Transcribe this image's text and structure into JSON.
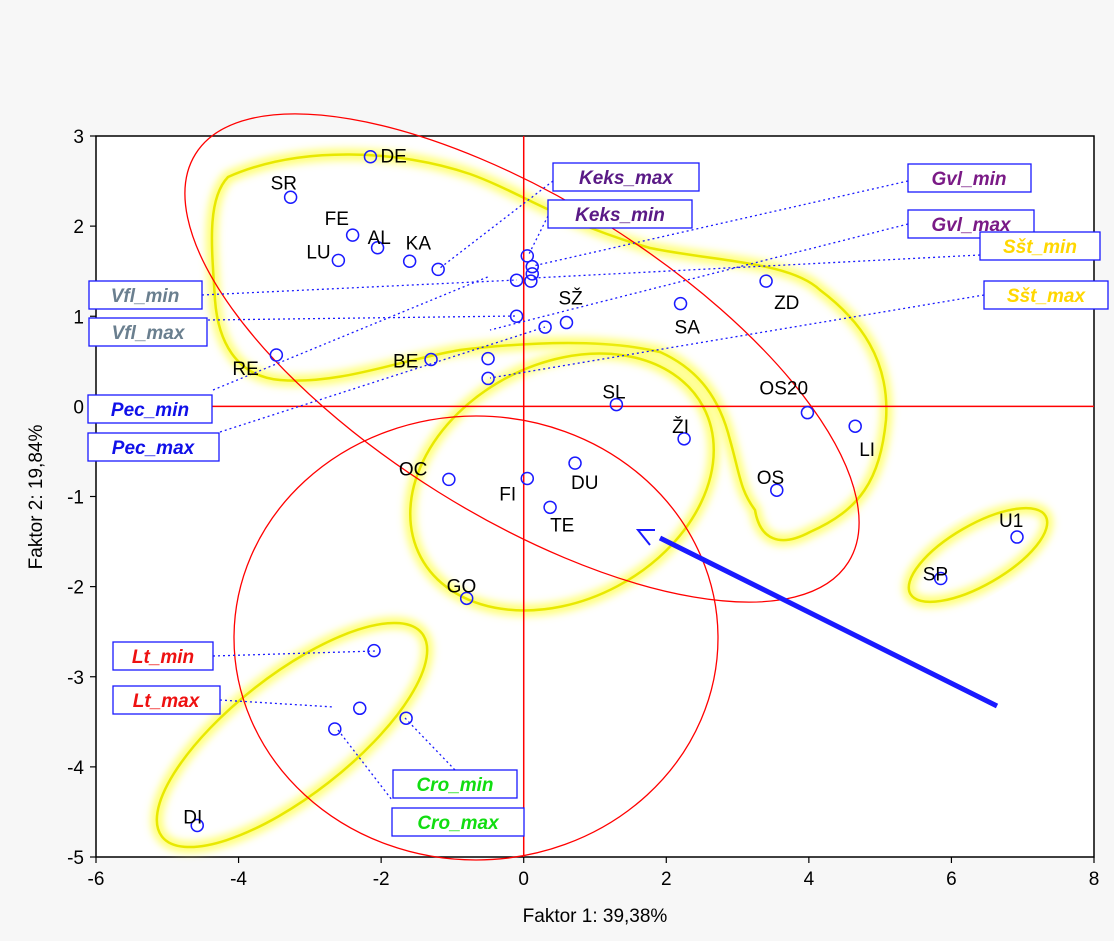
{
  "chart_data": {
    "type": "scatter",
    "title": "",
    "xlabel": "Faktor 1: 39,38%",
    "ylabel": "Faktor 2: 19,84%",
    "xlim": [
      -6,
      8
    ],
    "ylim": [
      -5,
      3
    ],
    "xticks": [
      "-6",
      "-4",
      "-2",
      "0",
      "2",
      "4",
      "6",
      "8"
    ],
    "yticks": [
      "3",
      "2",
      "1",
      "0",
      "-1",
      "-2",
      "-3",
      "-4",
      "-5"
    ],
    "grid": false,
    "reference_lines": {
      "x": 0,
      "y": 0,
      "color": "#ff0000"
    },
    "points": [
      {
        "label": "DE",
        "x": -2.15,
        "y": 2.77
      },
      {
        "label": "SR",
        "x": -3.27,
        "y": 2.32
      },
      {
        "label": "FE",
        "x": -2.4,
        "y": 1.9
      },
      {
        "label": "AL",
        "x": -2.05,
        "y": 1.76
      },
      {
        "label": "LU",
        "x": -2.6,
        "y": 1.62
      },
      {
        "label": "KA",
        "x": -1.6,
        "y": 1.61
      },
      {
        "label": "",
        "x": -1.2,
        "y": 1.52
      },
      {
        "label": "",
        "x": 0.05,
        "y": 1.67
      },
      {
        "label": "",
        "x": 0.12,
        "y": 1.55
      },
      {
        "label": "",
        "x": 0.12,
        "y": 1.47
      },
      {
        "label": "",
        "x": -0.1,
        "y": 1.4
      },
      {
        "label": "",
        "x": 0.1,
        "y": 1.39
      },
      {
        "label": "ZD",
        "x": 3.4,
        "y": 1.39
      },
      {
        "label": "SA",
        "x": 2.2,
        "y": 1.14
      },
      {
        "label": "",
        "x": -0.1,
        "y": 1.0
      },
      {
        "label": "SŽ",
        "x": 0.6,
        "y": 0.93
      },
      {
        "label": "",
        "x": 0.3,
        "y": 0.88
      },
      {
        "label": "RE",
        "x": -3.47,
        "y": 0.57
      },
      {
        "label": "BE",
        "x": -1.3,
        "y": 0.52
      },
      {
        "label": "",
        "x": -0.5,
        "y": 0.53
      },
      {
        "label": "",
        "x": -0.5,
        "y": 0.31
      },
      {
        "label": "SL",
        "x": 1.3,
        "y": 0.02
      },
      {
        "label": "OS20",
        "x": 3.98,
        "y": -0.07
      },
      {
        "label": "LI",
        "x": 4.65,
        "y": -0.22
      },
      {
        "label": "ŽI",
        "x": 2.25,
        "y": -0.36
      },
      {
        "label": "DU",
        "x": 0.72,
        "y": -0.63
      },
      {
        "label": "OC",
        "x": -1.05,
        "y": -0.81
      },
      {
        "label": "FI",
        "x": 0.05,
        "y": -0.8
      },
      {
        "label": "OS",
        "x": 3.55,
        "y": -0.93
      },
      {
        "label": "TE",
        "x": 0.37,
        "y": -1.12
      },
      {
        "label": "U1",
        "x": 6.92,
        "y": -1.45
      },
      {
        "label": "SP",
        "x": 5.85,
        "y": -1.91
      },
      {
        "label": "GO",
        "x": -0.8,
        "y": -2.13
      },
      {
        "label": "",
        "x": -2.1,
        "y": -2.71
      },
      {
        "label": "",
        "x": -2.3,
        "y": -3.35
      },
      {
        "label": "",
        "x": -1.65,
        "y": -3.46
      },
      {
        "label": "",
        "x": -2.65,
        "y": -3.58
      },
      {
        "label": "DI",
        "x": -4.58,
        "y": -4.65
      }
    ],
    "annotations": [
      {
        "label": "Keks_max",
        "color": "#5a1a86"
      },
      {
        "label": "Keks_min",
        "color": "#5a1a86"
      },
      {
        "label": "Gvl_min",
        "color": "#7a1a86"
      },
      {
        "label": "Gvl_max",
        "color": "#7a1a86"
      },
      {
        "label": "Sšt_min",
        "color": "#ffd700"
      },
      {
        "label": "Sšt_max",
        "color": "#ffd700"
      },
      {
        "label": "Vfl_min",
        "color": "#6a7f8f"
      },
      {
        "label": "Vfl_max",
        "color": "#6a7f8f"
      },
      {
        "label": "Pec_min",
        "color": "#1010e8"
      },
      {
        "label": "Pec_max",
        "color": "#1010e8"
      },
      {
        "label": "Lt_min",
        "color": "#ee1111"
      },
      {
        "label": "Lt_max",
        "color": "#ee1111"
      },
      {
        "label": "Cro_min",
        "color": "#11dd11"
      },
      {
        "label": "Cro_max",
        "color": "#11dd11"
      }
    ],
    "colors": {
      "point": "#1a1aff",
      "axis_lines": "#ff0000",
      "ellipse": "#ff0000",
      "highlight": "#ffff33",
      "arrow": "#1a1aff"
    }
  }
}
